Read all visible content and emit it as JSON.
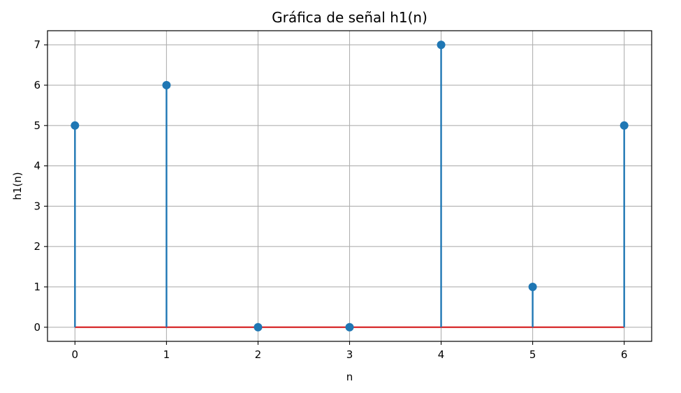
{
  "chart_data": {
    "type": "stem",
    "title": "Gráfica de señal h1(n)",
    "xlabel": "n",
    "ylabel": "h1(n)",
    "x": [
      0,
      1,
      2,
      3,
      4,
      5,
      6
    ],
    "y": [
      5,
      6,
      0,
      0,
      7,
      1,
      5
    ],
    "xticks": [
      "0",
      "1",
      "2",
      "3",
      "4",
      "5",
      "6"
    ],
    "yticks": [
      "0",
      "1",
      "2",
      "3",
      "4",
      "5",
      "6",
      "7"
    ],
    "xlim": [
      -0.3,
      6.3
    ],
    "ylim": [
      -0.35,
      7.35
    ],
    "grid": true,
    "colors": {
      "stem": "#1f77b4",
      "marker": "#1f77b4",
      "baseline": "#d62728",
      "grid": "#b0b0b0",
      "axes": "#000000"
    }
  }
}
